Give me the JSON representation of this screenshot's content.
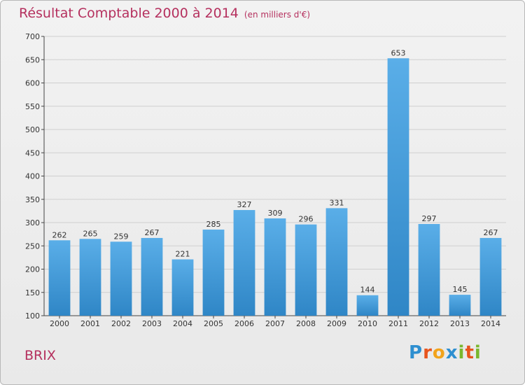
{
  "header": {
    "title": "Résultat Comptable 2000 à 2014",
    "unit": "(en milliers d'€)"
  },
  "commune": "BRIX",
  "logo": {
    "text": "Proxiti",
    "letters": [
      {
        "ch": "P",
        "color": "#2e8fd0"
      },
      {
        "ch": "r",
        "color": "#e8541d"
      },
      {
        "ch": "o",
        "color": "#f2a31b"
      },
      {
        "ch": "x",
        "color": "#2e8fd0"
      },
      {
        "ch": "i",
        "color": "#7ab72e"
      },
      {
        "ch": "t",
        "color": "#e8541d"
      },
      {
        "ch": "i",
        "color": "#7ab72e"
      }
    ]
  },
  "colors": {
    "bar_top": "#5aaee8",
    "bar_bottom": "#2f86c6",
    "grid": "#cfcfcf",
    "axis": "#444444",
    "title": "#b5305e"
  },
  "chart_data": {
    "type": "bar",
    "title": "Résultat Comptable 2000 à 2014",
    "subtitle": "(en milliers d'€)",
    "xlabel": "",
    "ylabel": "",
    "categories": [
      "2000",
      "2001",
      "2002",
      "2003",
      "2004",
      "2005",
      "2006",
      "2007",
      "2008",
      "2009",
      "2010",
      "2011",
      "2012",
      "2013",
      "2014"
    ],
    "values": [
      262,
      265,
      259,
      267,
      221,
      285,
      327,
      309,
      296,
      331,
      144,
      653,
      297,
      145,
      267
    ],
    "ylim": [
      100,
      700
    ],
    "yticks": [
      100,
      150,
      200,
      250,
      300,
      350,
      400,
      450,
      500,
      550,
      600,
      650,
      700
    ],
    "grid": true,
    "data_labels": true
  }
}
